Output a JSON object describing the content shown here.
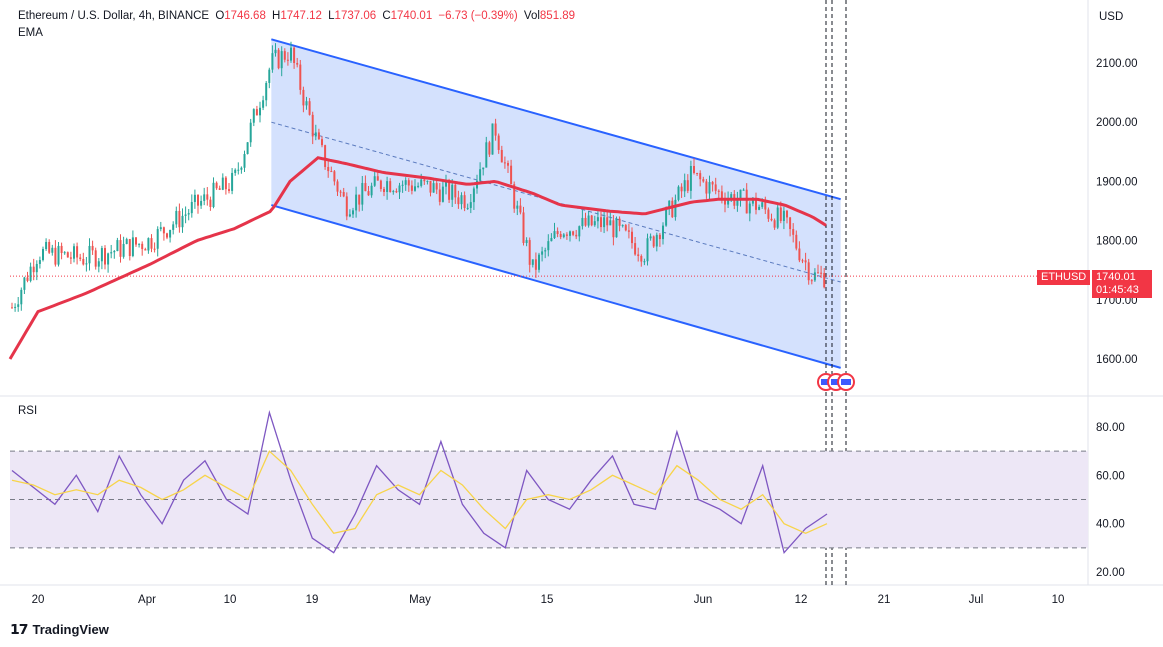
{
  "legend": {
    "symbol": "Ethereum / U.S. Dollar, 4h, BINANCE",
    "o_label": "O",
    "o": "1746.68",
    "h_label": "H",
    "h": "1747.12",
    "l_label": "L",
    "l": "1737.06",
    "c_label": "C",
    "c": "1740.01",
    "change": "−6.73 (−0.39%)",
    "vol_label": "Vol",
    "vol": "851.89",
    "ema_label": "EMA"
  },
  "rsi_label": "RSI",
  "price_axis": {
    "unit": "USD",
    "ticks": [
      "2100.00",
      "2000.00",
      "1900.00",
      "1800.00",
      "1700.00",
      "1600.00"
    ]
  },
  "rsi_axis": {
    "ticks": [
      "80.00",
      "60.00",
      "40.00",
      "20.00"
    ]
  },
  "time_axis": [
    "20",
    "Apr",
    "10",
    "19",
    "May",
    "15",
    "Jun",
    "12",
    "21",
    "Jul",
    "10"
  ],
  "price_tag": {
    "symbol": "ETHUSD",
    "price": "1740.01",
    "countdown": "01:45:43"
  },
  "brand": "TradingView",
  "colors": {
    "up": "#26a69a",
    "down": "#ef5350",
    "ema": "#e5344a",
    "channel_line": "#2962ff",
    "channel_fill": "#ccdcfd",
    "rsi_line": "#7e57c2",
    "rsi_ma": "#f7d44a",
    "rsi_band": "#ede7f6",
    "price_tag": "#f23645"
  },
  "chart_data": [
    {
      "type": "candlestick",
      "title": "Ethereum / U.S. Dollar, 4h, BINANCE",
      "ylabel": "USD",
      "ylim": [
        1545,
        2160
      ],
      "x": [
        "Mar 17",
        "Mar 20",
        "Mar 25",
        "Apr 1",
        "Apr 6",
        "Apr 10",
        "Apr 14",
        "Apr 16",
        "Apr 19",
        "Apr 22",
        "Apr 26",
        "May 1",
        "May 5",
        "May 8",
        "May 12",
        "May 15",
        "May 20",
        "May 24",
        "May 29",
        "Jun 1",
        "Jun 5",
        "Jun 8",
        "Jun 11",
        "Jun 13"
      ],
      "close": [
        1680,
        1780,
        1770,
        1800,
        1860,
        1900,
        2100,
        2120,
        1960,
        1860,
        1900,
        1890,
        1870,
        1990,
        1750,
        1820,
        1830,
        1780,
        1910,
        1880,
        1860,
        1830,
        1740,
        1740
      ],
      "ema": [
        1600,
        1680,
        1710,
        1760,
        1800,
        1820,
        1850,
        1900,
        1940,
        1930,
        1915,
        1905,
        1895,
        1900,
        1880,
        1860,
        1850,
        1845,
        1865,
        1870,
        1870,
        1860,
        1840,
        1820
      ],
      "channel": {
        "upper": [
          [
            "Apr 14",
            2140
          ],
          [
            "Jun 14",
            1870
          ]
        ],
        "lower": [
          [
            "Apr 14",
            1860
          ],
          [
            "Jun 14",
            1585
          ]
        ],
        "mid": [
          [
            "Apr 14",
            2000
          ],
          [
            "Jun 14",
            1730
          ]
        ]
      },
      "last_price": 1740.01
    },
    {
      "type": "line",
      "title": "RSI",
      "ylim": [
        15,
        90
      ],
      "levels": [
        70,
        50,
        30
      ],
      "series": [
        {
          "values": [
            62,
            55,
            48,
            60,
            45,
            68,
            52,
            40,
            58,
            66,
            50,
            44,
            86,
            58,
            34,
            28,
            44,
            64,
            54,
            48,
            74,
            48,
            36,
            30,
            62,
            50,
            46,
            58,
            68,
            48,
            46,
            78,
            50,
            46,
            40,
            64,
            28,
            38,
            44
          ]
        },
        {
          "values": [
            58,
            56,
            52,
            54,
            52,
            58,
            55,
            50,
            54,
            60,
            55,
            50,
            70,
            62,
            48,
            36,
            38,
            52,
            56,
            52,
            62,
            56,
            46,
            38,
            50,
            52,
            50,
            54,
            60,
            56,
            52,
            64,
            58,
            50,
            46,
            52,
            40,
            36,
            40
          ]
        }
      ]
    }
  ]
}
